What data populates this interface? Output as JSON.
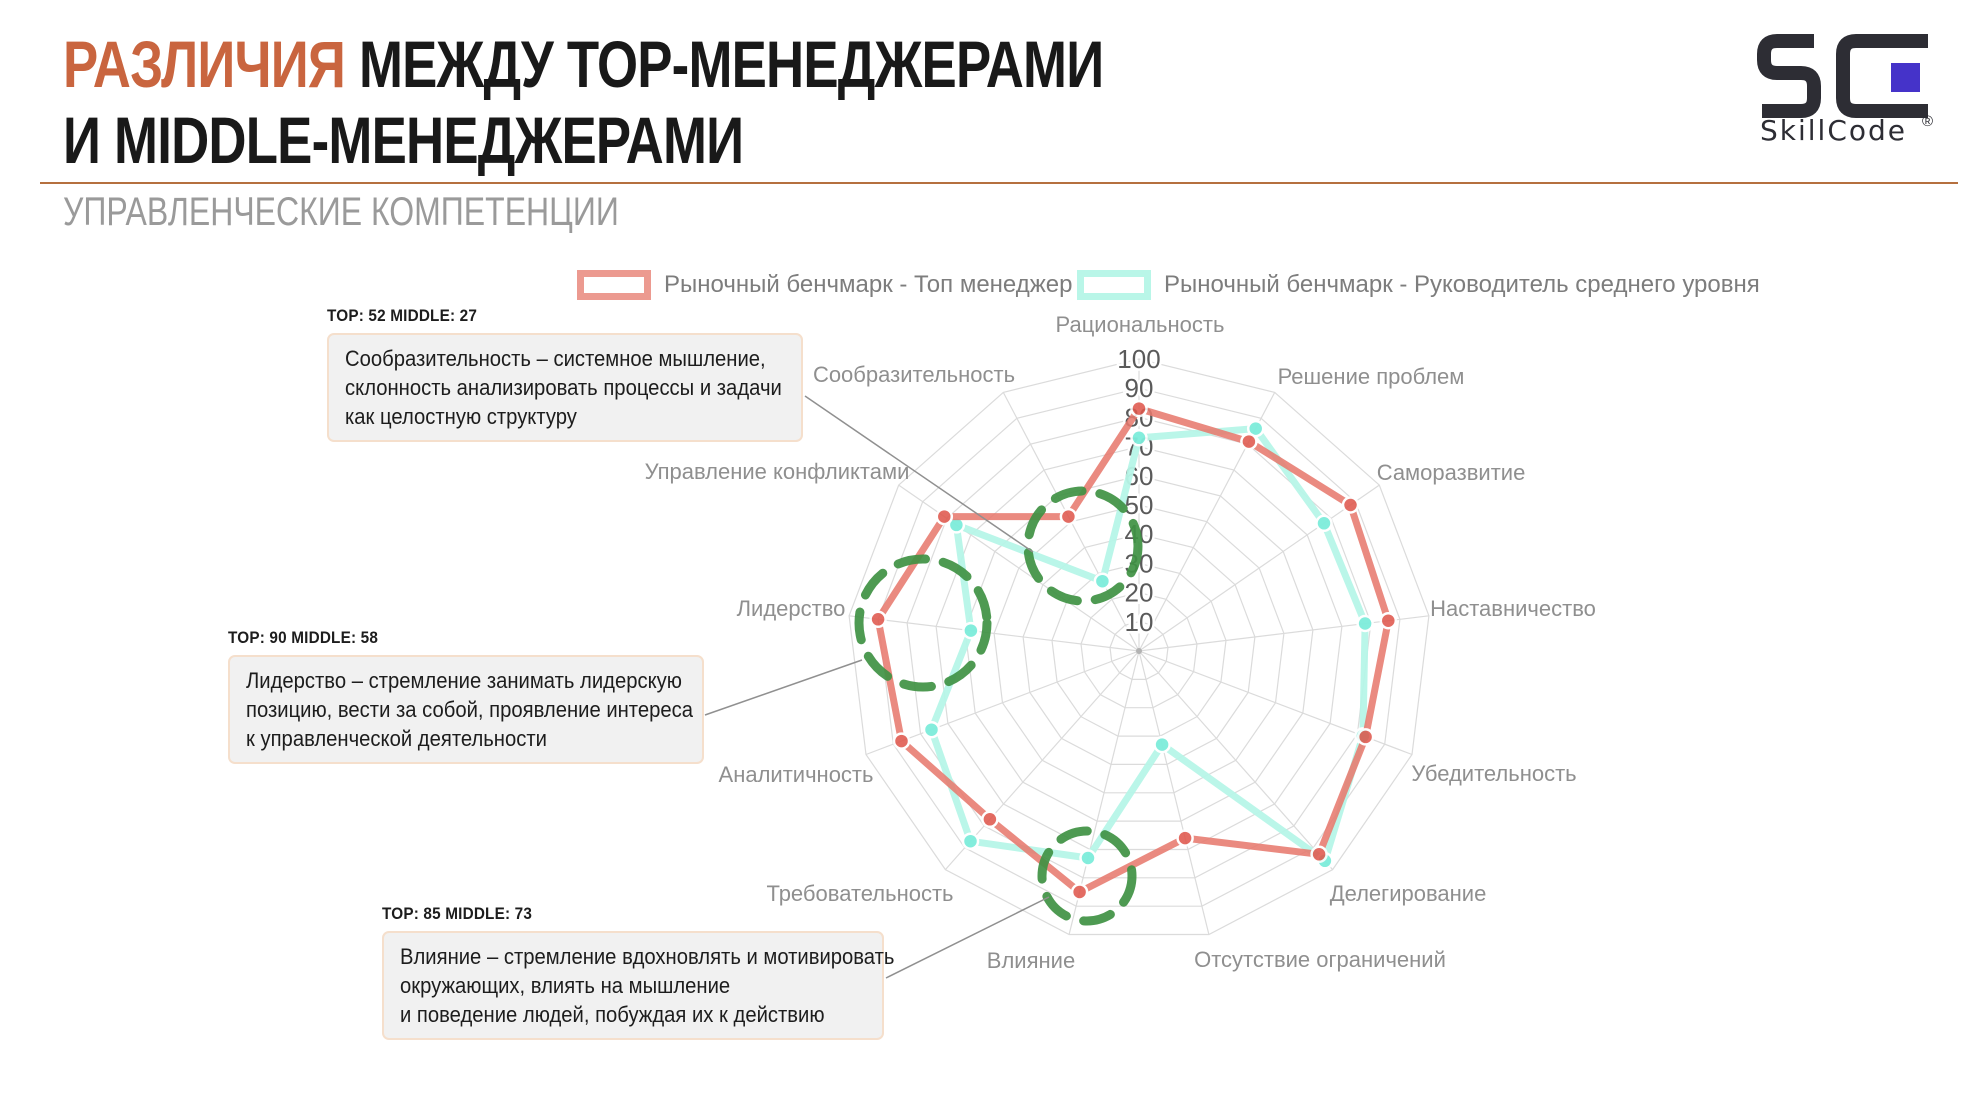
{
  "header": {
    "title_accent": "РАЗЛИЧИЯ",
    "title_rest": " МЕЖДУ ТОР-МЕНЕДЖЕРАМИ",
    "title_line2": "И MIDDLE-МЕНЕДЖЕРАМИ",
    "subtitle": "УПРАВЛЕНЧЕСКИЕ КОМПЕТЕНЦИИ",
    "accent_color": "#c9653f"
  },
  "logo": {
    "text": "SkillCode",
    "registered": "®",
    "mark_color": "#2d2d34",
    "square_color": "#4533c9"
  },
  "legend": [
    {
      "label": "Рыночный бенчмарк - Топ менеджер",
      "color": "#ec9a90"
    },
    {
      "label": "Рыночный бенчмарк - Руководитель среднего уровня",
      "color": "#b9f6e8"
    }
  ],
  "chart_data": {
    "type": "radar",
    "title": "",
    "categories": [
      "Рациональность",
      "Решение проблем",
      "Саморазвитие",
      "Наставничество",
      "Убедительность",
      "Делегирование",
      "Отсутствие ограничений",
      "Влияние",
      "Требовательность",
      "Аналитичность",
      "Лидерство",
      "Управление конфликтами",
      "Сообразительность"
    ],
    "series": [
      {
        "name": "Рыночный бенчмарк - Топ менеджер",
        "color": "#e8796e",
        "point_color": "#e0574c",
        "opacity": 0.87,
        "values": [
          83,
          81,
          88,
          86,
          83,
          93,
          66,
          85,
          77,
          87,
          90,
          81,
          52
        ]
      },
      {
        "name": "Рыночный бенчмарк - Руководитель среднего уровня",
        "color": "#b7f6e8",
        "point_color": "#7deddb",
        "opacity": 0.95,
        "values": [
          73,
          86,
          77,
          78,
          82,
          96,
          33,
          73,
          87,
          76,
          58,
          76,
          27
        ]
      }
    ],
    "ticks": [
      10,
      20,
      30,
      40,
      50,
      60,
      70,
      80,
      90,
      100
    ],
    "range": [
      0,
      100
    ],
    "grid": true,
    "legend_position": "top",
    "highlight_color": "#3f9143",
    "highlighted_categories": [
      "Сообразительность",
      "Лидерство",
      "Влияние"
    ]
  },
  "annotations": [
    {
      "header": "TOP: 52 MIDDLE: 27",
      "lines": [
        "Сообразительность – системное мышление,",
        "склонность анализировать процессы и задачи",
        "как целостную структуру"
      ]
    },
    {
      "header": "TOP: 90 MIDDLE: 58",
      "lines": [
        "Лидерство – стремление занимать лидерскую",
        "позицию, вести за собой, проявление интереса",
        "к управленческой деятельности"
      ]
    },
    {
      "header": "TOP: 85 MIDDLE: 73",
      "lines": [
        "Влияние – стремление вдохновлять и мотивировать",
        "окружающих, влиять на мышление",
        "и поведение людей, побуждая их к действию"
      ]
    }
  ]
}
